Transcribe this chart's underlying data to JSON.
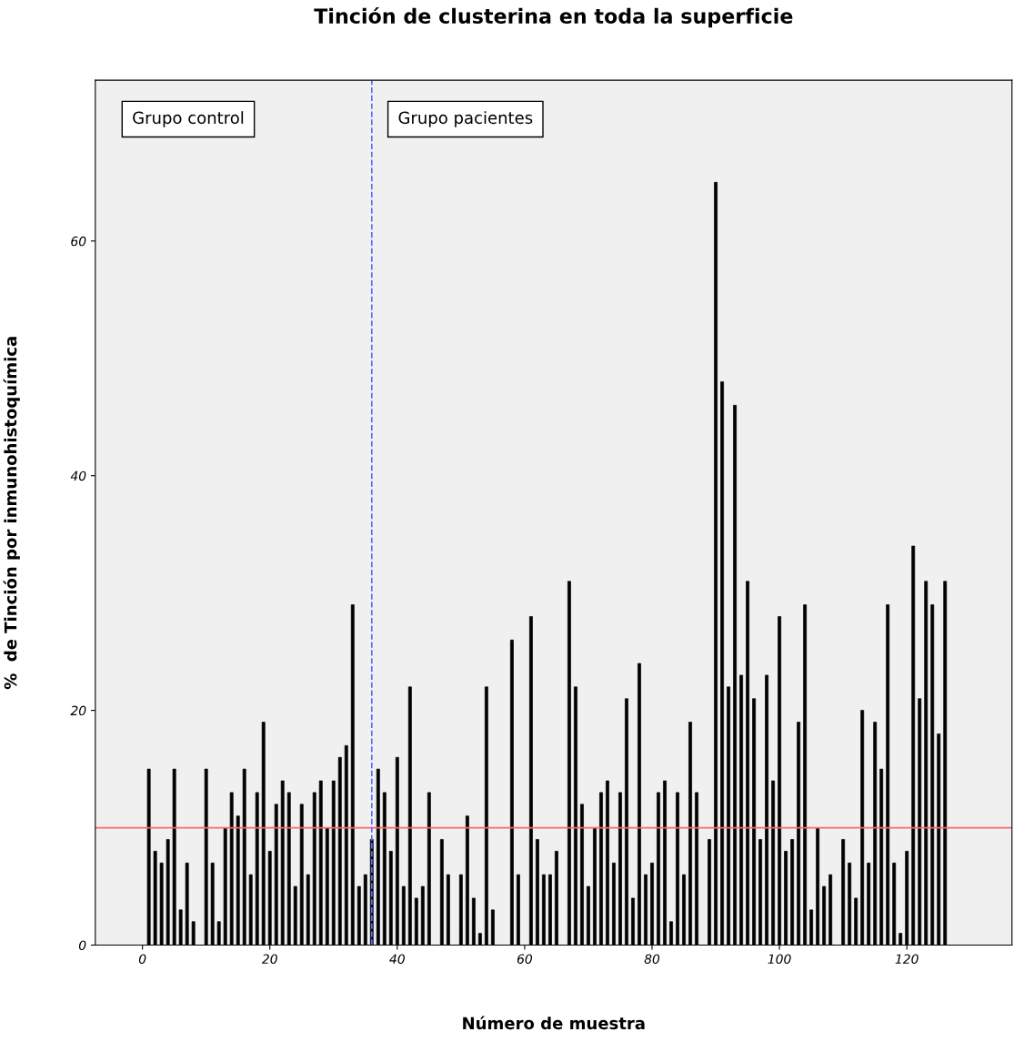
{
  "chart_data": {
    "type": "bar",
    "title": "Tinción de clusterina en toda la superficie",
    "xlabel": "Número de muestra",
    "ylabel": "%  de Tinción por inmunohistoquímica",
    "x": [
      1,
      2,
      3,
      4,
      5,
      6,
      7,
      8,
      10,
      11,
      12,
      13,
      14,
      15,
      16,
      17,
      18,
      19,
      20,
      21,
      22,
      23,
      24,
      25,
      26,
      27,
      28,
      29,
      30,
      31,
      32,
      33,
      34,
      35,
      36,
      37,
      38,
      39,
      40,
      41,
      42,
      43,
      44,
      45,
      47,
      48,
      50,
      51,
      52,
      53,
      54,
      55,
      58,
      59,
      61,
      62,
      63,
      64,
      65,
      67,
      68,
      69,
      70,
      71,
      72,
      73,
      74,
      75,
      76,
      77,
      78,
      79,
      80,
      81,
      82,
      83,
      84,
      85,
      86,
      87,
      89,
      90,
      91,
      92,
      93,
      94,
      95,
      96,
      97,
      98,
      99,
      100,
      101,
      102,
      103,
      104,
      105,
      106,
      107,
      108,
      110,
      111,
      112,
      113,
      114,
      115,
      116,
      117,
      118,
      119,
      120,
      121,
      122,
      123,
      124,
      125,
      126
    ],
    "values": [
      15,
      8,
      7,
      9,
      15,
      3,
      7,
      2,
      15,
      7,
      2,
      10,
      13,
      11,
      15,
      6,
      13,
      19,
      8,
      12,
      14,
      13,
      5,
      12,
      6,
      13,
      14,
      10,
      14,
      16,
      17,
      29,
      5,
      6,
      9,
      15,
      13,
      8,
      16,
      5,
      22,
      4,
      5,
      13,
      9,
      6,
      6,
      11,
      4,
      1,
      22,
      3,
      26,
      6,
      28,
      9,
      6,
      6,
      8,
      31,
      22,
      12,
      5,
      10,
      13,
      14,
      7,
      13,
      21,
      4,
      24,
      6,
      7,
      13,
      14,
      2,
      13,
      6,
      19,
      13,
      9,
      65,
      48,
      22,
      46,
      23,
      31,
      21,
      9,
      23,
      14,
      28,
      8,
      9,
      19,
      29,
      3,
      10,
      5,
      6,
      9,
      7,
      4,
      20,
      7,
      19,
      15,
      29,
      7,
      1,
      8,
      34,
      21,
      31,
      29,
      18,
      31
    ],
    "color": "#000000",
    "xlim": [
      -7.4,
      136.5
    ],
    "ylim": [
      0,
      73.7
    ],
    "xticks": [
      0,
      20,
      40,
      60,
      80,
      100,
      120
    ],
    "yticks": [
      0,
      20,
      40,
      60
    ],
    "grid": false,
    "ref_lines": [
      {
        "axis": "y",
        "value": 10,
        "color": "#ff6666",
        "line_style": "solid"
      },
      {
        "axis": "x",
        "value": 36,
        "color": "#6666ff",
        "line_style": "dashed"
      }
    ],
    "annotations": [
      "Grupo control",
      "Grupo pacientes"
    ]
  }
}
